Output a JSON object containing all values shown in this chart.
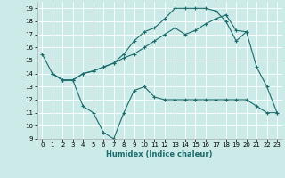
{
  "xlabel": "Humidex (Indice chaleur)",
  "bg_color": "#cceae8",
  "grid_color": "#ffffff",
  "line_color": "#1a6b6b",
  "xlim": [
    -0.5,
    23.5
  ],
  "ylim": [
    9,
    19.5
  ],
  "yticks": [
    9,
    10,
    11,
    12,
    13,
    14,
    15,
    16,
    17,
    18,
    19
  ],
  "xticks": [
    0,
    1,
    2,
    3,
    4,
    5,
    6,
    7,
    8,
    9,
    10,
    11,
    12,
    13,
    14,
    15,
    16,
    17,
    18,
    19,
    20,
    21,
    22,
    23
  ],
  "line1_x": [
    0,
    1,
    2,
    3,
    4,
    5,
    6,
    7,
    8,
    9,
    10,
    11,
    12,
    13,
    14,
    15,
    16,
    17,
    18,
    19,
    20,
    21,
    22,
    23
  ],
  "line1_y": [
    15.5,
    14.0,
    13.5,
    13.5,
    11.5,
    11.0,
    9.5,
    9.0,
    11.0,
    12.7,
    13.0,
    12.2,
    12.0,
    12.0,
    12.0,
    12.0,
    12.0,
    12.0,
    12.0,
    12.0,
    12.0,
    11.5,
    11.0,
    11.0
  ],
  "line2_x": [
    1,
    2,
    3,
    4,
    5,
    6,
    7,
    8,
    9,
    10,
    11,
    12,
    13,
    14,
    15,
    16,
    17,
    18,
    19,
    20,
    21,
    22,
    23
  ],
  "line2_y": [
    14.0,
    13.5,
    13.5,
    14.0,
    14.2,
    14.5,
    14.8,
    15.2,
    15.5,
    16.0,
    16.5,
    17.0,
    17.5,
    17.0,
    17.3,
    17.8,
    18.2,
    18.5,
    17.3,
    17.2,
    14.5,
    13.0,
    11.0
  ],
  "line3_x": [
    1,
    2,
    3,
    4,
    5,
    6,
    7,
    8,
    9,
    10,
    11,
    12,
    13,
    14,
    15,
    16,
    17,
    18,
    19,
    20
  ],
  "line3_y": [
    14.0,
    13.5,
    13.5,
    14.0,
    14.2,
    14.5,
    14.8,
    15.5,
    16.5,
    17.2,
    17.5,
    18.2,
    19.0,
    19.0,
    19.0,
    19.0,
    18.8,
    18.0,
    16.5,
    17.2
  ]
}
